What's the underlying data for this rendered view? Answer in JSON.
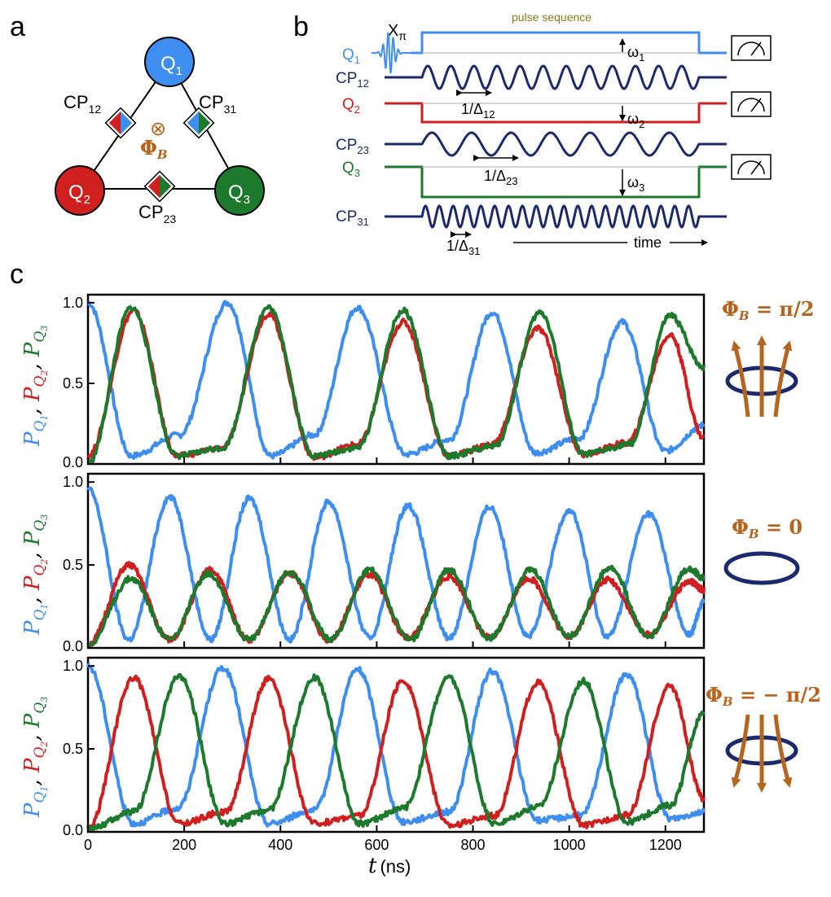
{
  "colors": {
    "q1": "#3d8ef0",
    "q2": "#d01f1f",
    "q3": "#1d7a2c",
    "cp": "#1a2a6c",
    "flux": "#b5651d",
    "seq_title": "#8a7a1a"
  },
  "panel_a": {
    "letter": "a",
    "nodes": [
      {
        "main": "Q",
        "sub": "1"
      },
      {
        "main": "Q",
        "sub": "2"
      },
      {
        "main": "Q",
        "sub": "3"
      }
    ],
    "couplers": [
      {
        "main": "CP",
        "sub": "12"
      },
      {
        "main": "CP",
        "sub": "31"
      },
      {
        "main": "CP",
        "sub": "23"
      }
    ],
    "flux_symbol": "⊗",
    "flux_label_main": "Φ",
    "flux_label_sub": "B"
  },
  "panel_b": {
    "letter": "b",
    "title": "pulse sequence",
    "xpi_main": "X",
    "xpi_sub": "π",
    "rows": [
      {
        "main": "Q",
        "sub": "1"
      },
      {
        "main": "CP",
        "sub": "12"
      },
      {
        "main": "Q",
        "sub": "2"
      },
      {
        "main": "CP",
        "sub": "23"
      },
      {
        "main": "Q",
        "sub": "3"
      },
      {
        "main": "CP",
        "sub": "31"
      }
    ],
    "omegas": [
      {
        "main": "ω",
        "sub": "1"
      },
      {
        "main": "ω",
        "sub": "2"
      },
      {
        "main": "ω",
        "sub": "3"
      }
    ],
    "periods": [
      {
        "main": "1/Δ",
        "sub": "12"
      },
      {
        "main": "1/Δ",
        "sub": "23"
      },
      {
        "main": "1/Δ",
        "sub": "31"
      }
    ],
    "time_label": "time"
  },
  "panel_c": {
    "letter": "c",
    "xlabel_var": "t",
    "xlabel_unit": "(ns)",
    "ylabel_parts": [
      "P",
      "Q",
      "1",
      ", ",
      "P",
      "Q",
      "2",
      ", ",
      "P",
      "Q",
      "3"
    ],
    "flux_conditions": [
      {
        "label": "Φ",
        "sub": "B",
        "rhs": " = π/2"
      },
      {
        "label": "Φ",
        "sub": "B",
        "rhs": " = 0"
      },
      {
        "label": "Φ",
        "sub": "B",
        "rhs": " = − π/2"
      }
    ]
  },
  "chart_data": [
    {
      "type": "line",
      "xlim": [
        0,
        1280
      ],
      "ylim": [
        0,
        1.05
      ],
      "xticks": [
        0,
        200,
        400,
        600,
        800,
        1000,
        1200
      ],
      "yticks": [
        "0.0",
        "0.5",
        "1.0"
      ],
      "series": [
        {
          "name": "P_Q1",
          "color": "#3d8ef0",
          "x": [
            0,
            90,
            190,
            290,
            380,
            470,
            560,
            660,
            750,
            840,
            930,
            1020,
            1110,
            1200,
            1280
          ],
          "y": [
            1.0,
            0.05,
            0.18,
            1.0,
            0.05,
            0.18,
            0.97,
            0.06,
            0.15,
            0.94,
            0.07,
            0.16,
            0.88,
            0.08,
            0.24
          ]
        },
        {
          "name": "P_Q2",
          "color": "#d01f1f",
          "x": [
            0,
            95,
            185,
            280,
            375,
            470,
            560,
            655,
            750,
            840,
            935,
            1030,
            1120,
            1210,
            1280
          ],
          "y": [
            0.05,
            0.95,
            0.05,
            0.1,
            0.93,
            0.04,
            0.12,
            0.88,
            0.05,
            0.12,
            0.84,
            0.06,
            0.13,
            0.8,
            0.16
          ]
        },
        {
          "name": "P_Q3",
          "color": "#1d7a2c",
          "x": [
            0,
            90,
            185,
            280,
            375,
            470,
            560,
            655,
            750,
            845,
            940,
            1030,
            1125,
            1210,
            1280
          ],
          "y": [
            0.0,
            0.97,
            0.05,
            0.1,
            0.97,
            0.05,
            0.1,
            0.95,
            0.05,
            0.11,
            0.94,
            0.06,
            0.12,
            0.92,
            0.6
          ]
        }
      ]
    },
    {
      "type": "line",
      "xlim": [
        0,
        1280
      ],
      "ylim": [
        0,
        1.05
      ],
      "xticks": [
        0,
        200,
        400,
        600,
        800,
        1000,
        1200
      ],
      "yticks": [
        "0.0",
        "0.5",
        "1.0"
      ],
      "series": [
        {
          "name": "P_Q1",
          "color": "#3d8ef0",
          "x": [
            0,
            85,
            170,
            255,
            335,
            420,
            500,
            585,
            665,
            750,
            835,
            915,
            1000,
            1080,
            1165,
            1250,
            1280
          ],
          "y": [
            0.96,
            0.05,
            0.91,
            0.05,
            0.9,
            0.05,
            0.88,
            0.06,
            0.86,
            0.06,
            0.85,
            0.07,
            0.83,
            0.07,
            0.81,
            0.08,
            0.28
          ]
        },
        {
          "name": "P_Q2",
          "color": "#d01f1f",
          "x": [
            0,
            85,
            170,
            255,
            335,
            420,
            500,
            585,
            665,
            750,
            835,
            915,
            1000,
            1080,
            1165,
            1250,
            1280
          ],
          "y": [
            0.02,
            0.5,
            0.05,
            0.47,
            0.05,
            0.45,
            0.05,
            0.44,
            0.06,
            0.43,
            0.06,
            0.42,
            0.07,
            0.41,
            0.08,
            0.4,
            0.35
          ]
        },
        {
          "name": "P_Q3",
          "color": "#1d7a2c",
          "x": [
            0,
            90,
            170,
            250,
            335,
            420,
            505,
            585,
            670,
            750,
            835,
            920,
            1000,
            1085,
            1165,
            1250,
            1280
          ],
          "y": [
            0.02,
            0.42,
            0.05,
            0.45,
            0.05,
            0.46,
            0.05,
            0.47,
            0.05,
            0.47,
            0.06,
            0.47,
            0.07,
            0.48,
            0.07,
            0.48,
            0.42
          ]
        }
      ]
    },
    {
      "type": "line",
      "xlim": [
        0,
        1280
      ],
      "ylim": [
        0,
        1.05
      ],
      "xticks": [
        0,
        200,
        400,
        600,
        800,
        1000,
        1200
      ],
      "yticks": [
        "0.0",
        "0.5",
        "1.0"
      ],
      "series": [
        {
          "name": "P_Q1",
          "color": "#3d8ef0",
          "x": [
            0,
            95,
            185,
            280,
            375,
            470,
            560,
            655,
            750,
            840,
            935,
            1025,
            1120,
            1210,
            1280
          ],
          "y": [
            1.0,
            0.05,
            0.14,
            0.99,
            0.05,
            0.13,
            0.98,
            0.06,
            0.12,
            0.97,
            0.07,
            0.1,
            0.95,
            0.08,
            0.12
          ]
        },
        {
          "name": "P_Q2",
          "color": "#d01f1f",
          "x": [
            0,
            95,
            190,
            285,
            375,
            470,
            565,
            655,
            750,
            845,
            935,
            1030,
            1120,
            1210,
            1280
          ],
          "y": [
            0.02,
            0.93,
            0.05,
            0.12,
            0.92,
            0.05,
            0.1,
            0.91,
            0.04,
            0.1,
            0.9,
            0.04,
            0.1,
            0.88,
            0.2
          ]
        },
        {
          "name": "P_Q3",
          "color": "#1d7a2c",
          "x": [
            0,
            95,
            190,
            285,
            375,
            470,
            565,
            655,
            750,
            845,
            935,
            1030,
            1120,
            1210,
            1280
          ],
          "y": [
            0.02,
            0.12,
            0.94,
            0.05,
            0.13,
            0.93,
            0.05,
            0.14,
            0.93,
            0.05,
            0.15,
            0.91,
            0.06,
            0.16,
            0.72
          ]
        }
      ]
    }
  ]
}
